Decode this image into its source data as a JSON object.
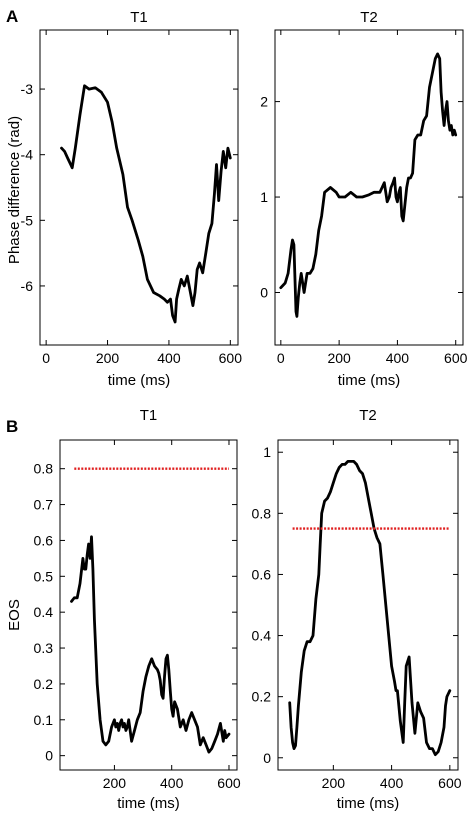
{
  "sections": [
    {
      "letter": "A",
      "ylabel": "Phase difference (rad)"
    },
    {
      "letter": "B",
      "ylabel": "EOS"
    }
  ],
  "chart_data": [
    {
      "type": "line",
      "title": "T1",
      "xlabel": "time (ms)",
      "ylabel": "Phase difference (rad)",
      "xlim": [
        -20,
        625
      ],
      "ylim": [
        -6.9,
        -2.1
      ],
      "xticks": [
        0,
        200,
        400,
        600
      ],
      "yticks": [
        -6,
        -5,
        -4,
        -3
      ],
      "grid": false,
      "series": [
        {
          "x": [
            50,
            60,
            70,
            80,
            85,
            95,
            110,
            125,
            140,
            160,
            180,
            200,
            215,
            230,
            250,
            265,
            280,
            300,
            315,
            330,
            350,
            370,
            385,
            395,
            405,
            412,
            420,
            425,
            432,
            440,
            450,
            460,
            470,
            478,
            485,
            492,
            500,
            510,
            520,
            530,
            540,
            548,
            555,
            562,
            570,
            577,
            585,
            592,
            600
          ],
          "y": [
            -3.9,
            -3.95,
            -4.05,
            -4.15,
            -4.2,
            -3.9,
            -3.4,
            -2.95,
            -3.0,
            -2.98,
            -3.05,
            -3.2,
            -3.5,
            -3.9,
            -4.3,
            -4.8,
            -5.0,
            -5.3,
            -5.55,
            -5.9,
            -6.1,
            -6.15,
            -6.2,
            -6.25,
            -6.2,
            -6.45,
            -6.55,
            -6.2,
            -6.05,
            -5.9,
            -6.0,
            -5.85,
            -6.1,
            -6.3,
            -6.1,
            -5.75,
            -5.65,
            -5.8,
            -5.5,
            -5.2,
            -5.05,
            -4.6,
            -4.15,
            -4.7,
            -4.25,
            -3.95,
            -4.2,
            -3.9,
            -4.05
          ],
          "color": "#000000"
        }
      ]
    },
    {
      "type": "line",
      "title": "T2",
      "xlabel": "time (ms)",
      "ylabel": "",
      "xlim": [
        -20,
        625
      ],
      "ylim": [
        -0.55,
        2.75
      ],
      "xticks": [
        0,
        200,
        400,
        600
      ],
      "yticks": [
        0,
        1,
        2
      ],
      "grid": false,
      "series": [
        {
          "x": [
            0,
            15,
            25,
            35,
            40,
            45,
            48,
            52,
            55,
            60,
            65,
            70,
            80,
            90,
            100,
            110,
            120,
            130,
            140,
            150,
            170,
            190,
            200,
            220,
            240,
            260,
            280,
            300,
            320,
            340,
            355,
            365,
            372,
            378,
            385,
            390,
            395,
            400,
            405,
            410,
            415,
            420,
            425,
            432,
            438,
            445,
            452,
            460,
            470,
            480,
            490,
            500,
            510,
            520,
            530,
            538,
            545,
            550,
            555,
            560,
            565,
            570,
            575,
            580,
            585,
            590,
            595,
            600
          ],
          "y": [
            0.05,
            0.1,
            0.2,
            0.45,
            0.55,
            0.5,
            0.2,
            -0.2,
            -0.25,
            -0.05,
            0.1,
            0.2,
            0.0,
            0.2,
            0.2,
            0.25,
            0.4,
            0.65,
            0.8,
            1.05,
            1.1,
            1.05,
            1.0,
            1.0,
            1.05,
            1.0,
            1.0,
            1.02,
            1.05,
            1.05,
            1.15,
            0.95,
            1.0,
            1.1,
            1.15,
            1.2,
            1.0,
            0.95,
            1.05,
            1.1,
            0.8,
            0.75,
            0.9,
            1.1,
            1.2,
            1.2,
            1.25,
            1.6,
            1.65,
            1.65,
            1.8,
            1.85,
            2.15,
            2.3,
            2.45,
            2.5,
            2.45,
            2.1,
            1.9,
            1.75,
            1.9,
            2.0,
            1.8,
            1.7,
            1.75,
            1.65,
            1.7,
            1.65
          ],
          "color": "#000000"
        }
      ]
    },
    {
      "type": "line",
      "title": "T1",
      "xlabel": "time (ms)",
      "ylabel": "EOS",
      "xlim": [
        10,
        628
      ],
      "ylim": [
        -0.04,
        0.88
      ],
      "xticks": [
        200,
        400,
        600
      ],
      "yticks": [
        0,
        0.1,
        0.2,
        0.3,
        0.4,
        0.5,
        0.6,
        0.7,
        0.8
      ],
      "grid": false,
      "series": [
        {
          "x": [
            50,
            60,
            70,
            80,
            90,
            95,
            100,
            105,
            110,
            115,
            120,
            125,
            130,
            140,
            150,
            160,
            170,
            180,
            190,
            200,
            205,
            210,
            215,
            220,
            225,
            230,
            235,
            240,
            245,
            250,
            260,
            270,
            280,
            290,
            300,
            310,
            320,
            330,
            340,
            350,
            355,
            360,
            365,
            370,
            375,
            380,
            385,
            390,
            395,
            400,
            405,
            410,
            420,
            430,
            440,
            450,
            460,
            470,
            480,
            490,
            500,
            510,
            520,
            530,
            540,
            550,
            560,
            570,
            580,
            585,
            590,
            600
          ],
          "y": [
            0.43,
            0.44,
            0.44,
            0.48,
            0.55,
            0.52,
            0.52,
            0.56,
            0.59,
            0.55,
            0.61,
            0.52,
            0.38,
            0.2,
            0.1,
            0.04,
            0.03,
            0.04,
            0.08,
            0.1,
            0.08,
            0.09,
            0.07,
            0.09,
            0.1,
            0.08,
            0.09,
            0.07,
            0.08,
            0.1,
            0.04,
            0.07,
            0.1,
            0.12,
            0.18,
            0.22,
            0.25,
            0.27,
            0.25,
            0.24,
            0.23,
            0.21,
            0.17,
            0.16,
            0.22,
            0.27,
            0.28,
            0.24,
            0.18,
            0.13,
            0.11,
            0.15,
            0.13,
            0.08,
            0.1,
            0.07,
            0.1,
            0.12,
            0.1,
            0.08,
            0.03,
            0.05,
            0.03,
            0.01,
            0.02,
            0.04,
            0.06,
            0.09,
            0.04,
            0.07,
            0.05,
            0.06
          ],
          "color": "#000000"
        },
        {
          "name": "threshold",
          "x": [
            60,
            600
          ],
          "y": [
            0.8,
            0.8
          ],
          "color": "#e02020"
        }
      ]
    },
    {
      "type": "line",
      "title": "T2",
      "xlabel": "time (ms)",
      "ylabel": "",
      "xlim": [
        10,
        628
      ],
      "ylim": [
        -0.04,
        1.04
      ],
      "xticks": [
        200,
        400,
        600
      ],
      "yticks": [
        0,
        0.2,
        0.4,
        0.6,
        0.8,
        1
      ],
      "grid": false,
      "series": [
        {
          "x": [
            50,
            55,
            60,
            65,
            70,
            75,
            80,
            90,
            100,
            110,
            120,
            130,
            140,
            150,
            155,
            160,
            170,
            180,
            190,
            200,
            210,
            220,
            230,
            240,
            250,
            260,
            270,
            280,
            290,
            300,
            310,
            320,
            330,
            340,
            350,
            360,
            365,
            370,
            380,
            390,
            400,
            410,
            415,
            420,
            430,
            440,
            445,
            450,
            460,
            470,
            480,
            490,
            500,
            510,
            520,
            530,
            540,
            550,
            560,
            570,
            580,
            585,
            590,
            600
          ],
          "y": [
            0.18,
            0.1,
            0.05,
            0.03,
            0.04,
            0.1,
            0.17,
            0.28,
            0.35,
            0.38,
            0.38,
            0.4,
            0.52,
            0.6,
            0.7,
            0.8,
            0.84,
            0.85,
            0.87,
            0.9,
            0.93,
            0.95,
            0.96,
            0.96,
            0.97,
            0.97,
            0.97,
            0.96,
            0.94,
            0.93,
            0.9,
            0.85,
            0.8,
            0.75,
            0.72,
            0.7,
            0.65,
            0.6,
            0.5,
            0.4,
            0.3,
            0.25,
            0.22,
            0.22,
            0.12,
            0.05,
            0.18,
            0.3,
            0.33,
            0.18,
            0.08,
            0.18,
            0.15,
            0.13,
            0.05,
            0.03,
            0.03,
            0.01,
            0.02,
            0.05,
            0.1,
            0.17,
            0.2,
            0.22
          ],
          "color": "#000000"
        },
        {
          "name": "threshold",
          "x": [
            60,
            600
          ],
          "y": [
            0.75,
            0.75
          ],
          "color": "#e02020"
        }
      ]
    }
  ]
}
